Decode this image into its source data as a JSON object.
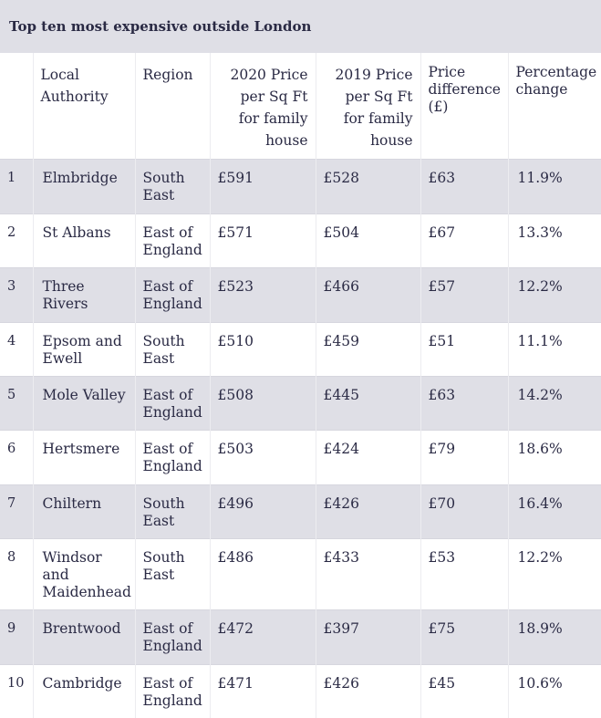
{
  "title": "Top ten most expensive outside London",
  "headers": {
    "rank": "",
    "local_authority": "Local Authority",
    "region": "Region",
    "price_2020": "2020 Price per Sq Ft for family house",
    "price_2019": "2019 Price per Sq Ft for family house",
    "price_difference": "Price difference (£)",
    "percentage_change": "Percentage change"
  },
  "rows": [
    {
      "rank": "1",
      "local_authority": "Elmbridge",
      "region": "South East",
      "price_2020": "£591",
      "price_2019": "£528",
      "price_difference": "£63",
      "percentage_change": "11.9%"
    },
    {
      "rank": "2",
      "local_authority": "St Albans",
      "region": "East of England",
      "price_2020": "£571",
      "price_2019": "£504",
      "price_difference": "£67",
      "percentage_change": "13.3%"
    },
    {
      "rank": "3",
      "local_authority": "Three Rivers",
      "region": "East of England",
      "price_2020": "£523",
      "price_2019": "£466",
      "price_difference": "£57",
      "percentage_change": "12.2%"
    },
    {
      "rank": "4",
      "local_authority": "Epsom and Ewell",
      "region": "South East",
      "price_2020": "£510",
      "price_2019": "£459",
      "price_difference": "£51",
      "percentage_change": "11.1%"
    },
    {
      "rank": "5",
      "local_authority": "Mole Valley",
      "region": "East of England",
      "price_2020": "£508",
      "price_2019": "£445",
      "price_difference": "£63",
      "percentage_change": "14.2%"
    },
    {
      "rank": "6",
      "local_authority": "Hertsmere",
      "region": "East of England",
      "price_2020": "£503",
      "price_2019": "£424",
      "price_difference": "£79",
      "percentage_change": "18.6%"
    },
    {
      "rank": "7",
      "local_authority": "Chiltern",
      "region": "South East",
      "price_2020": "£496",
      "price_2019": "£426",
      "price_difference": "£70",
      "percentage_change": "16.4%"
    },
    {
      "rank": "8",
      "local_authority": "Windsor and Maidenhead",
      "region": "South East",
      "price_2020": "£486",
      "price_2019": "£433",
      "price_difference": "£53",
      "percentage_change": "12.2%"
    },
    {
      "rank": "9",
      "local_authority": "Brentwood",
      "region": "East of England",
      "price_2020": "£472",
      "price_2019": "£397",
      "price_difference": "£75",
      "percentage_change": "18.9%"
    },
    {
      "rank": "10",
      "local_authority": "Cambridge",
      "region": "East of England",
      "price_2020": "£471",
      "price_2019": "£426",
      "price_difference": "£45",
      "percentage_change": "10.6%"
    }
  ],
  "colors": {
    "title_background": "#dfdfe6",
    "shaded_row": "#dfdfe6",
    "text": "#2a2a44"
  }
}
